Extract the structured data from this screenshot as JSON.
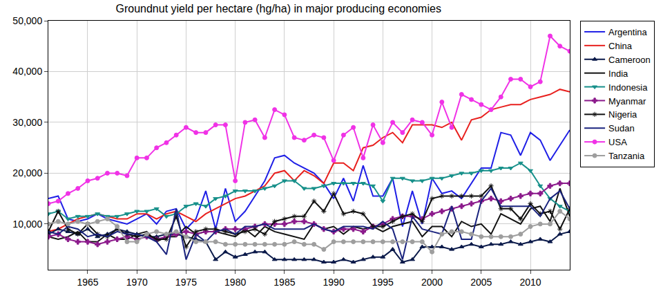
{
  "chart_data": {
    "type": "line",
    "title": "Groundnut yield per hectare (hg/ha) in major producing economies",
    "x": [
      1961,
      1962,
      1963,
      1964,
      1965,
      1966,
      1967,
      1968,
      1969,
      1970,
      1971,
      1972,
      1973,
      1974,
      1975,
      1976,
      1977,
      1978,
      1979,
      1980,
      1981,
      1982,
      1983,
      1984,
      1985,
      1986,
      1987,
      1988,
      1989,
      1990,
      1991,
      1992,
      1993,
      1994,
      1995,
      1996,
      1997,
      1998,
      1999,
      2000,
      2001,
      2002,
      2003,
      2004,
      2005,
      2006,
      2007,
      2008,
      2009,
      2010,
      2011,
      2012,
      2013,
      2014
    ],
    "xlim": [
      1961,
      2014
    ],
    "xticks": [
      1965,
      1970,
      1975,
      1980,
      1985,
      1990,
      1995,
      2000,
      2005,
      2010
    ],
    "ylim": [
      1000,
      50000
    ],
    "yticks": [
      {
        "value": 10000,
        "label": "10,000"
      },
      {
        "value": 20000,
        "label": "20,000"
      },
      {
        "value": 30000,
        "label": "30,000"
      },
      {
        "value": 40000,
        "label": "40,000"
      },
      {
        "value": 50000,
        "label": "50,000"
      }
    ],
    "grid": true,
    "legend": "right",
    "series": [
      {
        "name": "Argentina",
        "color": "#1f1fe6",
        "marker": "none",
        "values": [
          15000,
          15500,
          11000,
          10500,
          11000,
          12000,
          11000,
          10500,
          10000,
          11000,
          12000,
          10000,
          12500,
          13000,
          9000,
          11000,
          16500,
          9000,
          17000,
          10500,
          12500,
          15500,
          18500,
          23000,
          23500,
          22000,
          21000,
          20000,
          18000,
          15000,
          19000,
          14500,
          21500,
          15500,
          15500,
          19000,
          9500,
          16500,
          10000,
          19000,
          16000,
          16500,
          15000,
          18000,
          21000,
          21000,
          28000,
          27500,
          23500,
          28000,
          26500,
          22500,
          25500,
          28500
        ]
      },
      {
        "name": "China",
        "color": "#e8201e",
        "marker": "none",
        "values": [
          8500,
          9000,
          10000,
          11000,
          11500,
          12000,
          11500,
          11000,
          11000,
          12000,
          12000,
          11000,
          12000,
          12500,
          11500,
          10500,
          12000,
          13000,
          14000,
          15000,
          15500,
          16500,
          17500,
          20000,
          20500,
          18500,
          20500,
          19500,
          18000,
          22000,
          22000,
          20500,
          25000,
          25500,
          27000,
          28000,
          26000,
          29500,
          29500,
          29500,
          29000,
          30000,
          26500,
          30500,
          31000,
          32500,
          33000,
          33500,
          33500,
          34500,
          35000,
          35500,
          36500,
          36000
        ]
      },
      {
        "name": "Cameroon",
        "color": "#0b1a4a",
        "marker": "triangle-up",
        "values": [
          8000,
          9000,
          8500,
          8000,
          9000,
          7500,
          8000,
          9000,
          8500,
          8000,
          7500,
          7500,
          8000,
          8000,
          7500,
          7000,
          6500,
          3000,
          4500,
          3500,
          4000,
          4500,
          4500,
          3000,
          3000,
          3000,
          3000,
          3000,
          2500,
          2500,
          3000,
          2500,
          3000,
          3500,
          3500,
          5000,
          2500,
          3000,
          5500,
          5500,
          5500,
          5000,
          5500,
          6000,
          5500,
          6000,
          6000,
          6500,
          6000,
          6500,
          7000,
          6500,
          8000,
          8500
        ]
      },
      {
        "name": "India",
        "color": "#111111",
        "marker": "none",
        "values": [
          7500,
          7000,
          7500,
          8500,
          6500,
          6500,
          8000,
          7000,
          7000,
          8000,
          8500,
          6500,
          7500,
          7500,
          9500,
          8000,
          8500,
          8500,
          8000,
          7500,
          9000,
          7500,
          9500,
          8500,
          8000,
          7500,
          7000,
          10000,
          9000,
          9500,
          8000,
          9500,
          9000,
          9500,
          8500,
          9500,
          10000,
          10500,
          7500,
          9500,
          9500,
          7500,
          10500,
          9500,
          10000,
          8000,
          12000,
          11000,
          10000,
          13000,
          13500,
          10500,
          17000,
          11500
        ]
      },
      {
        "name": "Indonesia",
        "color": "#17908a",
        "marker": "triangle-down",
        "values": [
          12000,
          12500,
          11000,
          11500,
          11500,
          12000,
          11500,
          11500,
          12000,
          12500,
          12500,
          13000,
          11500,
          12000,
          13500,
          14000,
          13500,
          15000,
          15500,
          16500,
          16500,
          16500,
          17000,
          17500,
          18500,
          18500,
          17000,
          17000,
          17500,
          18000,
          18000,
          18000,
          18000,
          17500,
          14500,
          19000,
          19000,
          18500,
          18500,
          19000,
          19000,
          19500,
          20000,
          20000,
          20500,
          20500,
          21000,
          21000,
          22000,
          20500,
          17500,
          15000,
          13500,
          12500
        ]
      },
      {
        "name": "Myanmar",
        "color": "#8b1a8b",
        "marker": "cross",
        "values": [
          7500,
          8000,
          7000,
          6500,
          6500,
          6000,
          6500,
          7000,
          7500,
          7000,
          7500,
          7000,
          7500,
          8000,
          8500,
          8000,
          8500,
          8500,
          9000,
          9000,
          9000,
          9500,
          10000,
          10000,
          10000,
          10500,
          10500,
          10000,
          9000,
          8500,
          9000,
          9000,
          8500,
          9500,
          10000,
          11000,
          11500,
          11500,
          11000,
          12000,
          12500,
          13000,
          13500,
          14000,
          14500,
          15000,
          14500,
          15000,
          15500,
          16000,
          16000,
          17500,
          18000,
          18000
        ]
      },
      {
        "name": "Nigeria",
        "color": "#111111",
        "marker": "asterisk-open",
        "values": [
          8500,
          12500,
          9000,
          8000,
          10000,
          8000,
          7500,
          9000,
          8000,
          7500,
          8000,
          7000,
          7000,
          11500,
          5500,
          8500,
          9000,
          9000,
          8500,
          8000,
          8500,
          9000,
          8000,
          10500,
          11000,
          11500,
          11500,
          14500,
          12500,
          16000,
          12000,
          12500,
          12000,
          9500,
          9500,
          10500,
          11500,
          12000,
          10500,
          15000,
          15500,
          15500,
          15500,
          15500,
          15500,
          17500,
          13000,
          13000,
          11000,
          14000,
          12000,
          12500,
          9000,
          13000
        ]
      },
      {
        "name": "Sudan",
        "color": "#1a237e",
        "marker": "none",
        "values": [
          8500,
          8000,
          9500,
          9000,
          7500,
          8000,
          7500,
          8500,
          8000,
          8000,
          7500,
          6500,
          4000,
          13000,
          3000,
          8000,
          6500,
          8500,
          9000,
          8000,
          9500,
          9500,
          10000,
          9000,
          9000,
          9000,
          9000,
          10000,
          9000,
          8500,
          9500,
          9500,
          9500,
          9000,
          10500,
          9000,
          3000,
          11500,
          9000,
          8500,
          8000,
          13500,
          7000,
          7000,
          14500,
          17000,
          13500,
          13500,
          13500,
          13500,
          11500,
          15000,
          16500,
          13000
        ]
      },
      {
        "name": "USA",
        "color": "#f032e6",
        "marker": "circle",
        "values": [
          14000,
          14500,
          16000,
          17000,
          18500,
          19000,
          20000,
          20000,
          19500,
          23000,
          23000,
          25000,
          26000,
          27500,
          29000,
          28000,
          28000,
          29500,
          29500,
          18500,
          30000,
          30500,
          27000,
          32500,
          31500,
          27000,
          26500,
          27500,
          27000,
          22500,
          27500,
          29000,
          23000,
          29500,
          26000,
          30000,
          28000,
          30500,
          30000,
          27500,
          34000,
          29000,
          35500,
          34500,
          33500,
          32500,
          35000,
          38500,
          38500,
          37000,
          38000,
          47000,
          45000,
          44000
        ]
      },
      {
        "name": "Tanzania",
        "color": "#9e9e9e",
        "marker": "circle",
        "values": [
          10000,
          10500,
          10000,
          10500,
          10000,
          10500,
          11000,
          9500,
          6500,
          6500,
          8000,
          8500,
          8000,
          8500,
          7500,
          6500,
          6500,
          6500,
          6000,
          6000,
          6000,
          6000,
          6000,
          6000,
          6000,
          6500,
          6000,
          6000,
          5000,
          6500,
          6500,
          6500,
          6500,
          6500,
          6500,
          6500,
          6500,
          6500,
          6500,
          4500,
          8000,
          8500,
          8500,
          8000,
          7500,
          7500,
          7500,
          7500,
          8000,
          9500,
          10000,
          10000,
          12500,
          11000
        ]
      }
    ]
  }
}
